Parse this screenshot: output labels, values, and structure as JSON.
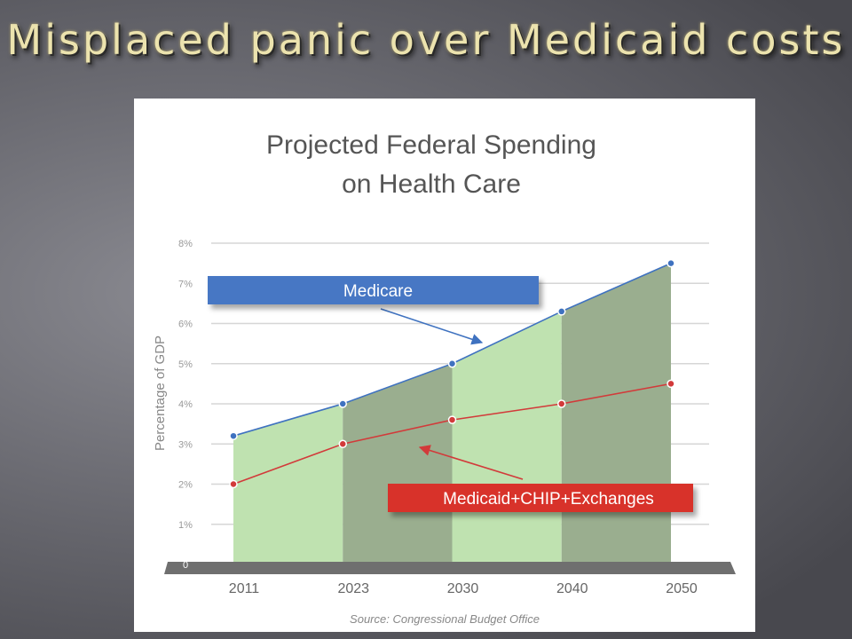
{
  "slide": {
    "title": "Misplaced panic over Medicaid costs"
  },
  "chart_data": {
    "type": "area",
    "title_line1": "Projected Federal Spending",
    "title_line2": "on Health Care",
    "ylabel": "Percentage of GDP",
    "source": "Source: Congressional Budget Office",
    "x": [
      "2011",
      "2023",
      "2030",
      "2040",
      "2050"
    ],
    "yticks": [
      {
        "value": 0,
        "label": "0"
      },
      {
        "value": 1,
        "label": "1%"
      },
      {
        "value": 2,
        "label": "2%"
      },
      {
        "value": 3,
        "label": "3%"
      },
      {
        "value": 4,
        "label": "4%"
      },
      {
        "value": 5,
        "label": "5%"
      },
      {
        "value": 6,
        "label": "6%"
      },
      {
        "value": 7,
        "label": "7%"
      },
      {
        "value": 8,
        "label": "8%"
      }
    ],
    "ylim": [
      0,
      8
    ],
    "grid": true,
    "series": [
      {
        "name": "Medicare",
        "values": [
          3.2,
          4.0,
          5.0,
          6.3,
          7.5
        ],
        "color": "#3f72c0",
        "label_color": "#4677c4"
      },
      {
        "name": "Medicaid+CHIP+Exchanges",
        "values": [
          2.0,
          3.0,
          3.6,
          4.0,
          4.5
        ],
        "color": "#d23a3a",
        "label_color": "#d8302c"
      }
    ],
    "band_colors": [
      "#bfe2b0",
      "#9aae8f"
    ]
  }
}
